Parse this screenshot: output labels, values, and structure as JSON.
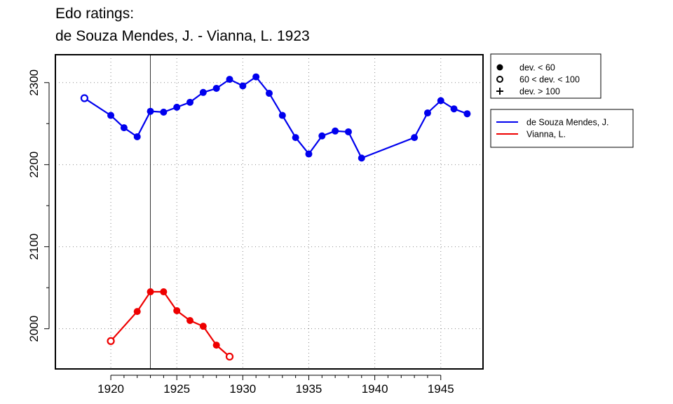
{
  "chart_data": {
    "type": "line",
    "title": [
      "Edo ratings:",
      "de Souza Mendes, J. - Vianna, L. 1923"
    ],
    "xlabel": "",
    "ylabel": "",
    "xlim": [
      1915.8,
      1948.2
    ],
    "ylim": [
      1951,
      2334
    ],
    "x_ticks": [
      1920,
      1925,
      1930,
      1935,
      1940,
      1945
    ],
    "y_ticks": [
      2000,
      2100,
      2200,
      2300
    ],
    "grid": true,
    "marker_line_year": 1923,
    "legend_markers": [
      {
        "symbol": "filled",
        "label": "dev. < 60"
      },
      {
        "symbol": "open",
        "label": "60 < dev. < 100"
      },
      {
        "symbol": "plus",
        "label": "dev. > 100"
      }
    ],
    "series": [
      {
        "name": "de Souza Mendes, J.",
        "color": "#0000ee",
        "points": [
          {
            "x": 1918,
            "y": 2281,
            "dev": "open"
          },
          {
            "x": 1920,
            "y": 2260,
            "dev": "filled"
          },
          {
            "x": 1921,
            "y": 2245,
            "dev": "filled"
          },
          {
            "x": 1922,
            "y": 2234,
            "dev": "filled"
          },
          {
            "x": 1923,
            "y": 2265,
            "dev": "filled"
          },
          {
            "x": 1924,
            "y": 2264,
            "dev": "filled"
          },
          {
            "x": 1925,
            "y": 2270,
            "dev": "filled"
          },
          {
            "x": 1926,
            "y": 2276,
            "dev": "filled"
          },
          {
            "x": 1927,
            "y": 2288,
            "dev": "filled"
          },
          {
            "x": 1928,
            "y": 2293,
            "dev": "filled"
          },
          {
            "x": 1929,
            "y": 2304,
            "dev": "filled"
          },
          {
            "x": 1930,
            "y": 2296,
            "dev": "filled"
          },
          {
            "x": 1931,
            "y": 2307,
            "dev": "filled"
          },
          {
            "x": 1932,
            "y": 2287,
            "dev": "filled"
          },
          {
            "x": 1933,
            "y": 2260,
            "dev": "filled"
          },
          {
            "x": 1934,
            "y": 2233,
            "dev": "filled"
          },
          {
            "x": 1935,
            "y": 2213,
            "dev": "filled"
          },
          {
            "x": 1936,
            "y": 2235,
            "dev": "filled"
          },
          {
            "x": 1937,
            "y": 2241,
            "dev": "filled"
          },
          {
            "x": 1938,
            "y": 2240,
            "dev": "filled"
          },
          {
            "x": 1939,
            "y": 2208,
            "dev": "filled"
          },
          {
            "x": 1943,
            "y": 2233,
            "dev": "filled"
          },
          {
            "x": 1944,
            "y": 2263,
            "dev": "filled"
          },
          {
            "x": 1945,
            "y": 2278,
            "dev": "filled"
          },
          {
            "x": 1946,
            "y": 2268,
            "dev": "filled"
          },
          {
            "x": 1947,
            "y": 2262,
            "dev": "filled"
          }
        ]
      },
      {
        "name": "Vianna, L.",
        "color": "#ee0000",
        "points": [
          {
            "x": 1920,
            "y": 1985,
            "dev": "open"
          },
          {
            "x": 1922,
            "y": 2021,
            "dev": "filled"
          },
          {
            "x": 1923,
            "y": 2045,
            "dev": "filled"
          },
          {
            "x": 1924,
            "y": 2045,
            "dev": "filled"
          },
          {
            "x": 1925,
            "y": 2022,
            "dev": "filled"
          },
          {
            "x": 1926,
            "y": 2010,
            "dev": "filled"
          },
          {
            "x": 1927,
            "y": 2003,
            "dev": "filled"
          },
          {
            "x": 1928,
            "y": 1980,
            "dev": "filled"
          },
          {
            "x": 1929,
            "y": 1966,
            "dev": "open"
          }
        ]
      }
    ]
  }
}
